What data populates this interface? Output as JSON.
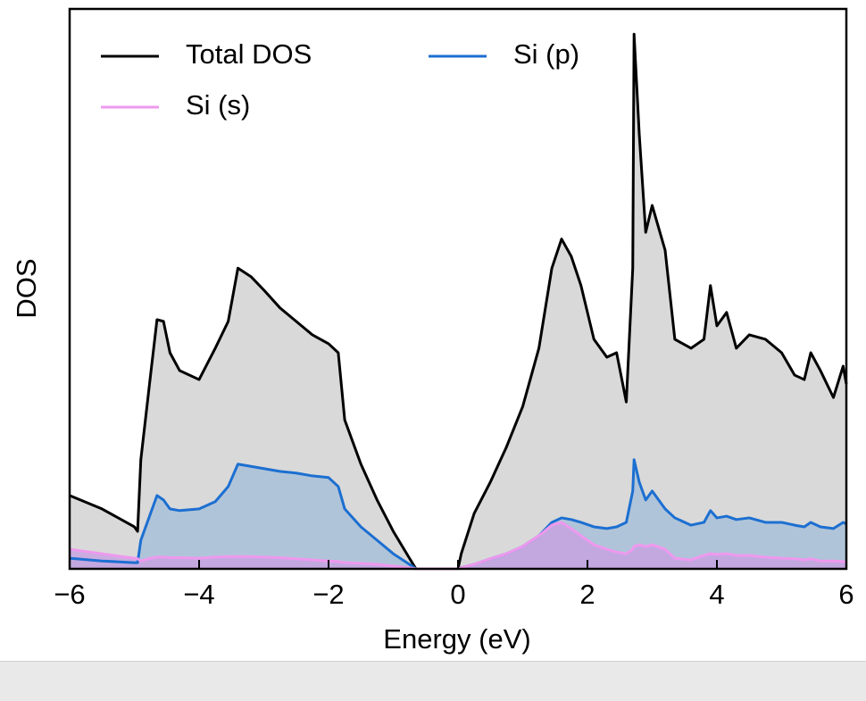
{
  "chart_data": {
    "type": "line",
    "xlabel": "Energy (eV)",
    "ylabel": "DOS",
    "x": [
      -6,
      -5.5,
      -5,
      -4.95,
      -4.9,
      -4.75,
      -4.65,
      -4.55,
      -4.45,
      -4.3,
      -4,
      -3.75,
      -3.55,
      -3.4,
      -3.2,
      -3,
      -2.75,
      -2.5,
      -2.25,
      -2,
      -1.85,
      -1.75,
      -1.5,
      -1.25,
      -1,
      -0.75,
      -0.65,
      0,
      0.05,
      0.25,
      0.5,
      0.75,
      1,
      1.25,
      1.45,
      1.6,
      1.75,
      1.9,
      2.1,
      2.3,
      2.45,
      2.6,
      2.7,
      2.72,
      2.8,
      2.9,
      3,
      3.2,
      3.35,
      3.6,
      3.8,
      3.9,
      4,
      4.15,
      4.3,
      4.5,
      4.75,
      5,
      5.2,
      5.35,
      5.45,
      5.6,
      5.8,
      5.95,
      6
    ],
    "series": [
      {
        "name": "Total DOS",
        "color": "#000000",
        "fill": "#d9d9d9",
        "values": [
          1.31,
          1.07,
          0.75,
          0.67,
          1.95,
          3.46,
          4.45,
          4.42,
          3.86,
          3.54,
          3.38,
          3.94,
          4.42,
          5.37,
          5.22,
          4.98,
          4.66,
          4.42,
          4.18,
          4.02,
          3.86,
          2.66,
          1.87,
          1.23,
          0.67,
          0.19,
          0,
          0,
          0.27,
          0.99,
          1.55,
          2.18,
          2.9,
          3.94,
          5.37,
          5.89,
          5.58,
          5.06,
          4.1,
          3.78,
          3.86,
          2.98,
          5.37,
          9.55,
          7.77,
          6.01,
          6.49,
          5.69,
          4.1,
          3.94,
          4.1,
          5.06,
          4.34,
          4.58,
          3.94,
          4.18,
          4.1,
          3.86,
          3.46,
          3.38,
          3.86,
          3.54,
          3.06,
          3.62,
          3.3
        ]
      },
      {
        "name": "Si (s)",
        "color": "#ee99ee",
        "fill": "#c7a3e0",
        "values": [
          0.35,
          0.27,
          0.19,
          0.18,
          0.14,
          0.19,
          0.21,
          0.21,
          0.2,
          0.2,
          0.19,
          0.21,
          0.22,
          0.22,
          0.22,
          0.21,
          0.2,
          0.18,
          0.16,
          0.14,
          0.13,
          0.11,
          0.1,
          0.08,
          0.05,
          0.02,
          0,
          0,
          0.02,
          0.08,
          0.18,
          0.27,
          0.4,
          0.59,
          0.78,
          0.83,
          0.72,
          0.59,
          0.43,
          0.35,
          0.3,
          0.27,
          0.35,
          0.4,
          0.43,
          0.4,
          0.43,
          0.35,
          0.19,
          0.16,
          0.24,
          0.27,
          0.26,
          0.27,
          0.24,
          0.24,
          0.21,
          0.19,
          0.18,
          0.16,
          0.18,
          0.14,
          0.14,
          0.13,
          0.13
        ]
      },
      {
        "name": "Si (p)",
        "color": "#1c6fd1",
        "fill": "#a8bfd8",
        "values": [
          0.19,
          0.14,
          0.11,
          0.11,
          0.51,
          0.99,
          1.31,
          1.23,
          1.07,
          1.04,
          1.07,
          1.2,
          1.47,
          1.87,
          1.83,
          1.79,
          1.74,
          1.71,
          1.66,
          1.63,
          1.47,
          1.07,
          0.75,
          0.51,
          0.27,
          0.08,
          0,
          0,
          0.02,
          0.08,
          0.18,
          0.27,
          0.4,
          0.59,
          0.83,
          0.91,
          0.88,
          0.83,
          0.75,
          0.72,
          0.75,
          0.83,
          1.39,
          1.95,
          1.55,
          1.23,
          1.39,
          1.07,
          0.91,
          0.78,
          0.83,
          1.04,
          0.91,
          0.94,
          0.88,
          0.91,
          0.83,
          0.83,
          0.78,
          0.75,
          0.83,
          0.75,
          0.72,
          0.83,
          0.8
        ]
      }
    ],
    "xlim": [
      -6,
      6
    ],
    "xticks": [
      {
        "value": -6,
        "label": "−6"
      },
      {
        "value": -4,
        "label": "−4"
      },
      {
        "value": -2,
        "label": "−2"
      },
      0,
      2,
      4,
      6
    ],
    "ylim": [
      0,
      10
    ],
    "legend": "upper left",
    "legend_columns": 2
  }
}
